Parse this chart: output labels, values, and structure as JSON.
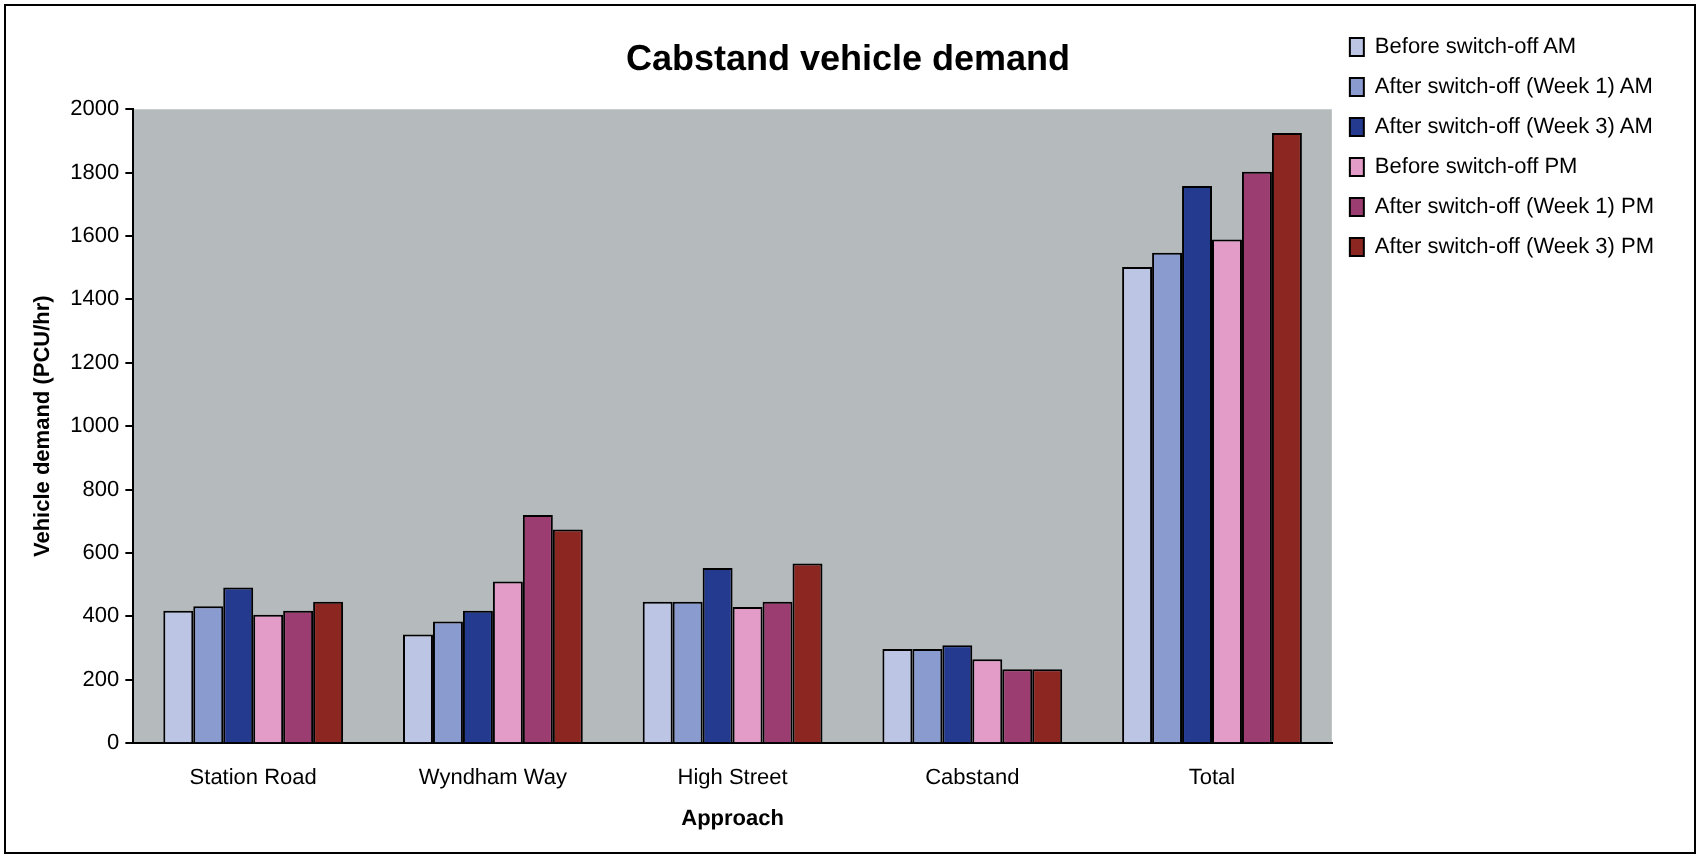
{
  "chart_data": {
    "type": "bar",
    "title": "Cabstand vehicle demand",
    "xlabel": "Approach",
    "ylabel": "Vehicle demand (PCU/hr)",
    "categories": [
      "Station Road",
      "Wyndham Way",
      "High Street",
      "Cabstand",
      "Total"
    ],
    "series": [
      {
        "name": "Before switch-off AM",
        "color": "#bcc5e4",
        "values": [
          418,
          343,
          446,
          297,
          1502
        ]
      },
      {
        "name": "After switch-off (Week 1) AM",
        "color": "#8a9bd0",
        "values": [
          432,
          384,
          446,
          297,
          1547
        ]
      },
      {
        "name": "After switch-off (Week 3) AM",
        "color": "#233a8f",
        "values": [
          491,
          418,
          553,
          309,
          1758
        ]
      },
      {
        "name": "Before switch-off PM",
        "color": "#e39cc7",
        "values": [
          405,
          510,
          430,
          265,
          1589
        ]
      },
      {
        "name": "After switch-off (Week 1) PM",
        "color": "#9c3d72",
        "values": [
          418,
          720,
          446,
          233,
          1803
        ]
      },
      {
        "name": "After switch-off (Week 3) PM",
        "color": "#8b2620",
        "values": [
          446,
          674,
          567,
          233,
          1925
        ]
      }
    ],
    "ylim": [
      0,
      2000
    ],
    "yticks": [
      0,
      200,
      400,
      600,
      800,
      1000,
      1200,
      1400,
      1600,
      1800,
      2000
    ],
    "grid": false,
    "legend": "right"
  }
}
